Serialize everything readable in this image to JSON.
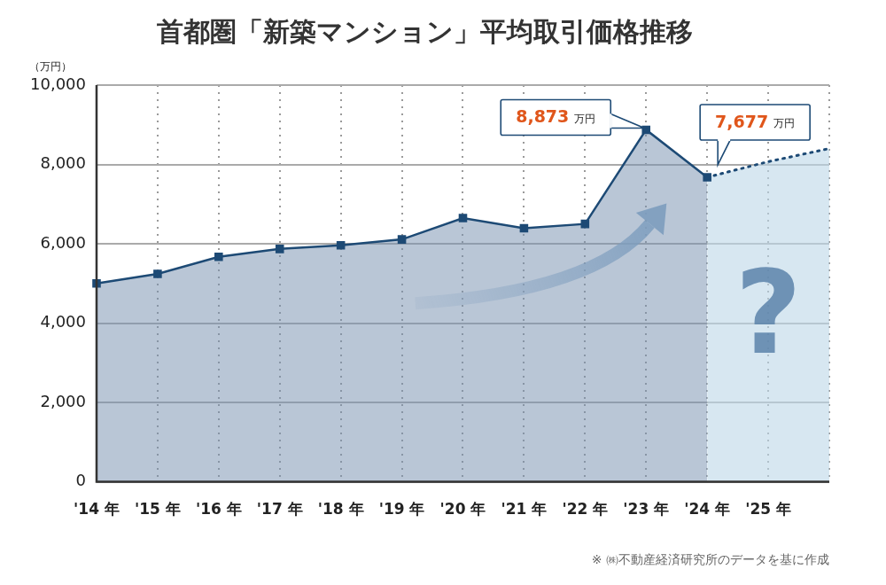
{
  "chart_data": {
    "type": "line",
    "title": "首都圏「新築マンション」平均取引価格推移",
    "y_label": "（万円）",
    "categories": [
      "'14 年",
      "'15 年",
      "'16 年",
      "'17 年",
      "'18 年",
      "'19 年",
      "'20 年",
      "'21 年",
      "'22 年",
      "'23 年",
      "'24 年",
      "'25 年",
      null
    ],
    "series": [
      {
        "color": "#1d4a75",
        "marker": "square",
        "line_style": "solid",
        "values": [
          5000,
          5240,
          5670,
          5870,
          5960,
          6110,
          6650,
          6390,
          6500,
          8873,
          7677,
          null,
          null
        ]
      },
      {
        "color": "#1d4a75",
        "marker": "none",
        "line_style": "dotted",
        "values": [
          null,
          null,
          null,
          null,
          null,
          null,
          null,
          null,
          null,
          null,
          7677,
          8070,
          8400
        ]
      }
    ],
    "ylim": [
      0,
      10000
    ],
    "yticks": [
      0,
      {
        "value": 2000,
        "label": "2,000"
      },
      {
        "value": 4000,
        "label": "4,000"
      },
      {
        "value": 6000,
        "label": "6,000"
      },
      {
        "value": 8000,
        "label": "8,000"
      },
      {
        "value": 10000,
        "label": "10,000"
      }
    ],
    "grid": true,
    "annotations": [
      {
        "x": "'23 年",
        "text": "8,873",
        "unit": "万円"
      },
      {
        "x": "'24 年",
        "text": "7,677",
        "unit": "万円"
      },
      {
        "x": "'25 年",
        "text": "?"
      }
    ],
    "source": "※ ㈱不動産経済研究所のデータを基に作成"
  }
}
